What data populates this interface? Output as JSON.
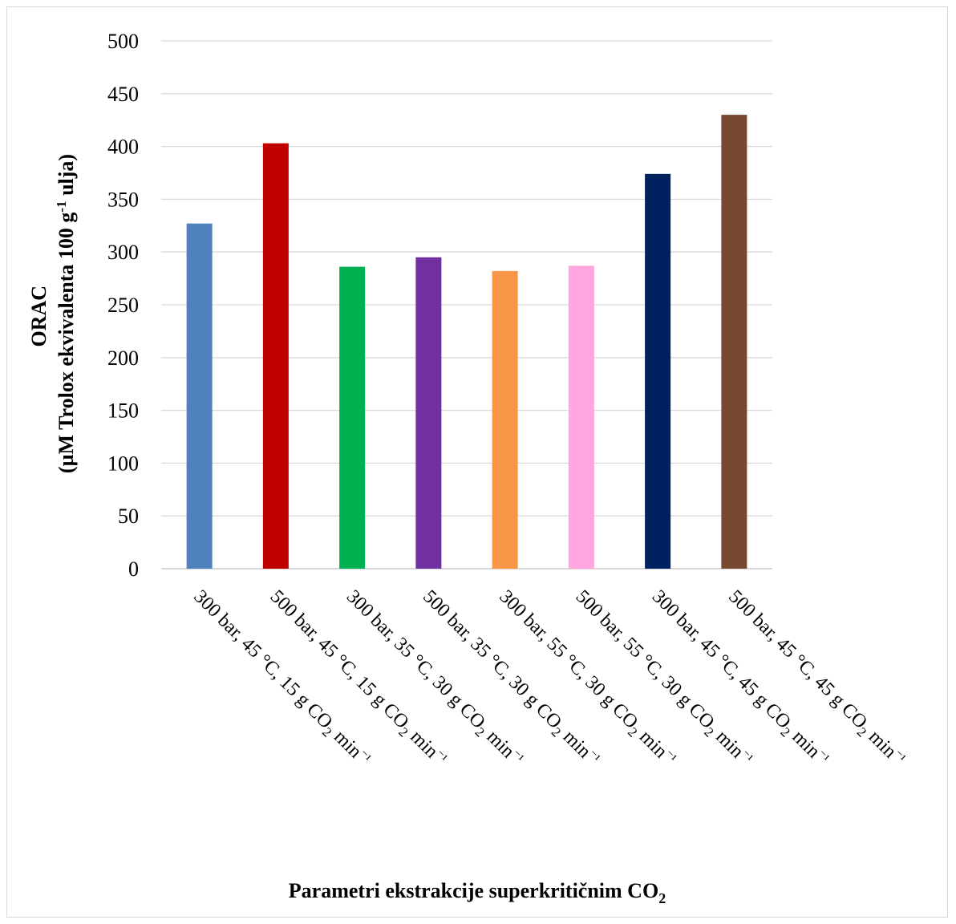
{
  "chart_data": {
    "type": "bar",
    "title": "",
    "ylabel_line1": "ORAC",
    "ylabel_line2_pre": "(µM Trolox ekvivalenta 100 g",
    "ylabel_line2_sup": "-1",
    "ylabel_line2_post": " ulja)",
    "xlabel_pre": "Parametri ekstrakcije superkritičnim CO",
    "xlabel_sub": "2",
    "ylim": [
      0,
      500
    ],
    "yticks": [
      0,
      50,
      100,
      150,
      200,
      250,
      300,
      350,
      400,
      450,
      500
    ],
    "grid": true,
    "legend": "none",
    "categories": [
      {
        "main": "300 bar, 45 °C, 15 g CO",
        "sub": "2",
        "tail": " min",
        "sup": "⁻¹"
      },
      {
        "main": "500 bar, 45 °C, 15 g CO",
        "sub": "2",
        "tail": " min",
        "sup": "⁻¹"
      },
      {
        "main": "300 bar, 35 °C, 30 g CO",
        "sub": "2",
        "tail": " min",
        "sup": "⁻¹"
      },
      {
        "main": "500 bar, 35 °C, 30 g CO",
        "sub": "2",
        "tail": " min",
        "sup": "⁻¹"
      },
      {
        "main": "300 bar, 55 °C, 30 g CO",
        "sub": "2",
        "tail": " min",
        "sup": "⁻¹"
      },
      {
        "main": "500 bar, 55 °C, 30 g CO",
        "sub": "2",
        "tail": " min",
        "sup": "⁻¹"
      },
      {
        "main": "300 bar, 45 °C, 45 g CO",
        "sub": "2",
        "tail": " min",
        "sup": "⁻¹"
      },
      {
        "main": "500 bar, 45 °C, 45 g CO",
        "sub": "2",
        "tail": " min",
        "sup": "⁻¹"
      }
    ],
    "values": [
      327,
      403,
      286,
      295,
      282,
      287,
      374,
      430
    ],
    "colors": [
      "#4f81bd",
      "#c00000",
      "#00b050",
      "#7030a0",
      "#f79646",
      "#ffa6e0",
      "#002060",
      "#784830"
    ]
  }
}
